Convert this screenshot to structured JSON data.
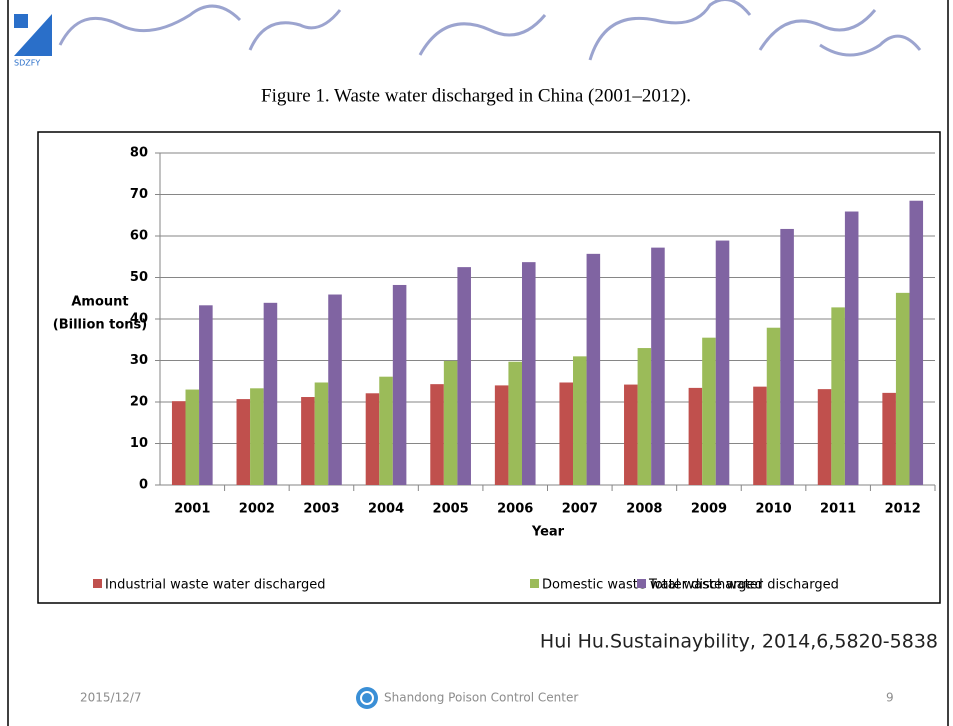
{
  "chart_data": {
    "type": "bar",
    "title": "Figure 1. Waste water discharged in China (2001–2012).",
    "ylabel": [
      "Amount",
      "(Billion tons)"
    ],
    "xlabel": "Year",
    "categories": [
      "2001",
      "2002",
      "2003",
      "2004",
      "2005",
      "2006",
      "2007",
      "2008",
      "2009",
      "2010",
      "2011",
      "2012"
    ],
    "series": [
      {
        "name": "Industrial waste water discharged",
        "color": "#c0504d",
        "values": [
          20.2,
          20.7,
          21.2,
          22.1,
          24.3,
          24.0,
          24.7,
          24.2,
          23.4,
          23.7,
          23.1,
          22.2
        ]
      },
      {
        "name": "Domestic waste water discharged",
        "color": "#9bbb59",
        "values": [
          23.0,
          23.3,
          24.7,
          26.1,
          29.9,
          29.7,
          31.0,
          33.0,
          35.5,
          37.9,
          42.8,
          46.3
        ]
      },
      {
        "name": "Total waste water discharged",
        "color": "#8064a2",
        "values": [
          43.3,
          43.9,
          45.9,
          48.2,
          52.5,
          53.7,
          55.7,
          57.2,
          58.9,
          61.7,
          65.9,
          68.5
        ]
      }
    ],
    "ylim": [
      0,
      80
    ],
    "yticks": [
      0,
      10,
      20,
      30,
      40,
      50,
      60,
      70,
      80
    ],
    "grid": true,
    "legend": "bottom"
  },
  "slide": {
    "logo": "SDZFY",
    "citation": "Hui Hu.Sustainaybility, 2014,6,5820-5838",
    "date": "2015/12/7",
    "center": "Shandong Poison Control Center",
    "page": "9"
  }
}
